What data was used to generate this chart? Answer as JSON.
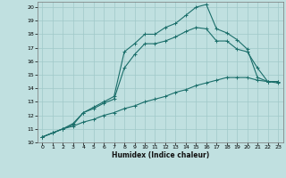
{
  "title": "",
  "xlabel": "Humidex (Indice chaleur)",
  "bg_color": "#c0e0e0",
  "grid_color": "#9fc8c8",
  "line_color": "#1a6e6a",
  "xlim": [
    -0.5,
    23.5
  ],
  "ylim": [
    10,
    20.4
  ],
  "xticks": [
    0,
    1,
    2,
    3,
    4,
    5,
    6,
    7,
    8,
    9,
    10,
    11,
    12,
    13,
    14,
    15,
    16,
    17,
    18,
    19,
    20,
    21,
    22,
    23
  ],
  "yticks": [
    10,
    11,
    12,
    13,
    14,
    15,
    16,
    17,
    18,
    19,
    20
  ],
  "series": [
    {
      "x": [
        0,
        1,
        2,
        3,
        4,
        5,
        6,
        7,
        8,
        9,
        10,
        11,
        12,
        13,
        14,
        15,
        16,
        17,
        18,
        19,
        20,
        21,
        22,
        23
      ],
      "y": [
        10.4,
        10.7,
        11.0,
        11.4,
        12.2,
        12.6,
        13.0,
        13.4,
        16.7,
        17.3,
        18.0,
        18.0,
        18.5,
        18.8,
        19.4,
        20.0,
        20.2,
        18.4,
        18.1,
        17.6,
        16.9,
        14.8,
        14.5,
        14.5
      ]
    },
    {
      "x": [
        0,
        1,
        2,
        3,
        4,
        5,
        6,
        7,
        8,
        9,
        10,
        11,
        12,
        13,
        14,
        15,
        16,
        17,
        18,
        19,
        20,
        21,
        22,
        23
      ],
      "y": [
        10.4,
        10.7,
        11.0,
        11.3,
        12.2,
        12.5,
        12.9,
        13.2,
        15.5,
        16.5,
        17.3,
        17.3,
        17.5,
        17.8,
        18.2,
        18.5,
        18.4,
        17.5,
        17.5,
        16.9,
        16.7,
        15.5,
        14.5,
        14.5
      ]
    },
    {
      "x": [
        0,
        1,
        2,
        3,
        4,
        5,
        6,
        7,
        8,
        9,
        10,
        11,
        12,
        13,
        14,
        15,
        16,
        17,
        18,
        19,
        20,
        21,
        22,
        23
      ],
      "y": [
        10.4,
        10.7,
        11.0,
        11.2,
        11.5,
        11.7,
        12.0,
        12.2,
        12.5,
        12.7,
        13.0,
        13.2,
        13.4,
        13.7,
        13.9,
        14.2,
        14.4,
        14.6,
        14.8,
        14.8,
        14.8,
        14.6,
        14.5,
        14.4
      ]
    }
  ]
}
